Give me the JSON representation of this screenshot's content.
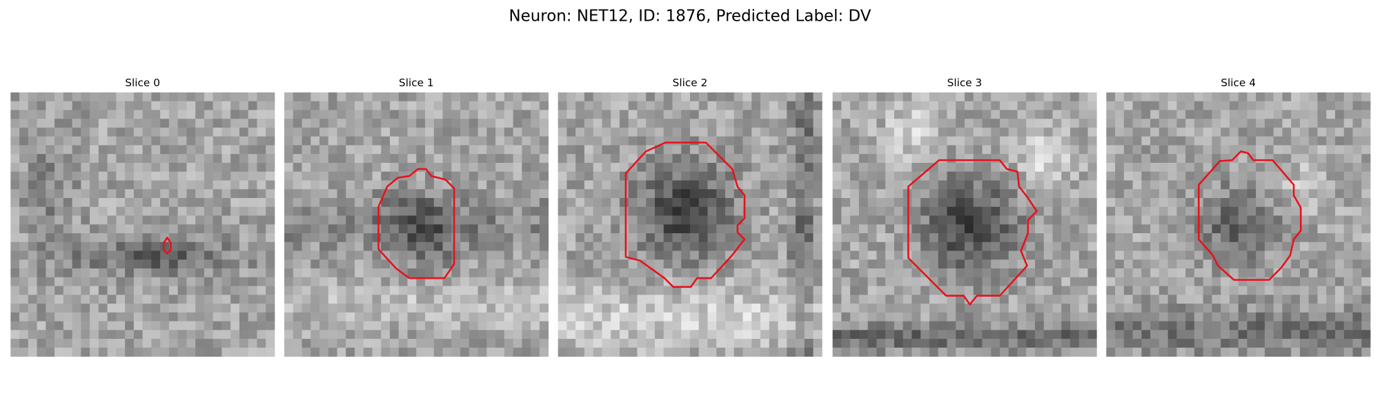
{
  "title": "Neuron: NET12, ID: 1876, Predicted Label: DV",
  "panels": [
    {
      "title": "Slice 0"
    },
    {
      "title": "Slice 1"
    },
    {
      "title": "Slice 2"
    },
    {
      "title": "Slice 3"
    },
    {
      "title": "Slice 4"
    }
  ]
}
